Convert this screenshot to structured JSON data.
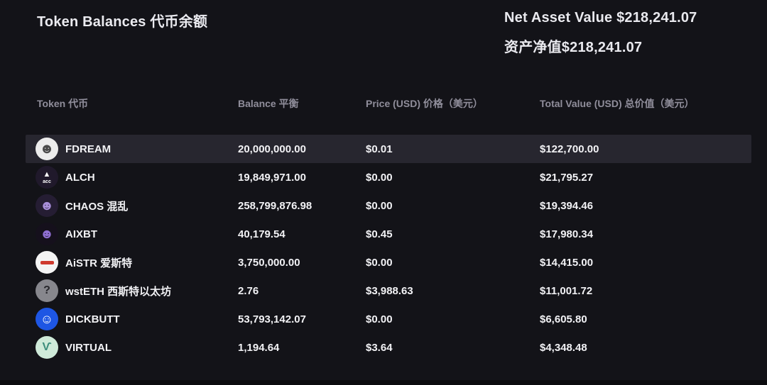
{
  "page": {
    "title": "Token Balances 代币余额",
    "net_asset_value_en": "Net Asset Value $218,241.07",
    "net_asset_value_zh": "资产净值$218,241.07"
  },
  "table": {
    "columns": [
      {
        "key": "token",
        "label": "Token 代币"
      },
      {
        "key": "balance",
        "label": "Balance 平衡"
      },
      {
        "key": "price",
        "label": "Price (USD) 价格（美元）"
      },
      {
        "key": "total",
        "label": "Total Value (USD) 总价值（美元）"
      }
    ],
    "rows": [
      {
        "token": "FDREAM",
        "balance": "20,000,000.00",
        "price": "$0.01",
        "total": "$122,700.00",
        "icon": "fdream-token-icon",
        "highlighted": true
      },
      {
        "token": "ALCH",
        "balance": "19,849,971.00",
        "price": "$0.00",
        "total": "$21,795.27",
        "icon": "alch-token-icon",
        "highlighted": false
      },
      {
        "token": "CHAOS 混乱",
        "balance": "258,799,876.98",
        "price": "$0.00",
        "total": "$19,394.46",
        "icon": "chaos-token-icon",
        "highlighted": false
      },
      {
        "token": "AIXBT",
        "balance": "40,179.54",
        "price": "$0.45",
        "total": "$17,980.34",
        "icon": "aixbt-token-icon",
        "highlighted": false
      },
      {
        "token": "AiSTR 爱斯特",
        "balance": "3,750,000.00",
        "price": "$0.00",
        "total": "$14,415.00",
        "icon": "aistr-token-icon",
        "highlighted": false
      },
      {
        "token": "wstETH 西斯特以太坊",
        "balance": "2.76",
        "price": "$3,988.63",
        "total": "$11,001.72",
        "icon": "wsteth-token-icon",
        "highlighted": false
      },
      {
        "token": "DICKBUTT",
        "balance": "53,793,142.07",
        "price": "$0.00",
        "total": "$6,605.80",
        "icon": "dickbutt-token-icon",
        "highlighted": false
      },
      {
        "token": "VIRTUAL",
        "balance": "1,194.64",
        "price": "$3.64",
        "total": "$4,348.48",
        "icon": "virtual-token-icon",
        "highlighted": false
      }
    ]
  },
  "colors": {
    "background": "#131318",
    "row_highlight": "#27262f",
    "header_text": "#908e9b",
    "primary_text": "#f2f2f5"
  }
}
